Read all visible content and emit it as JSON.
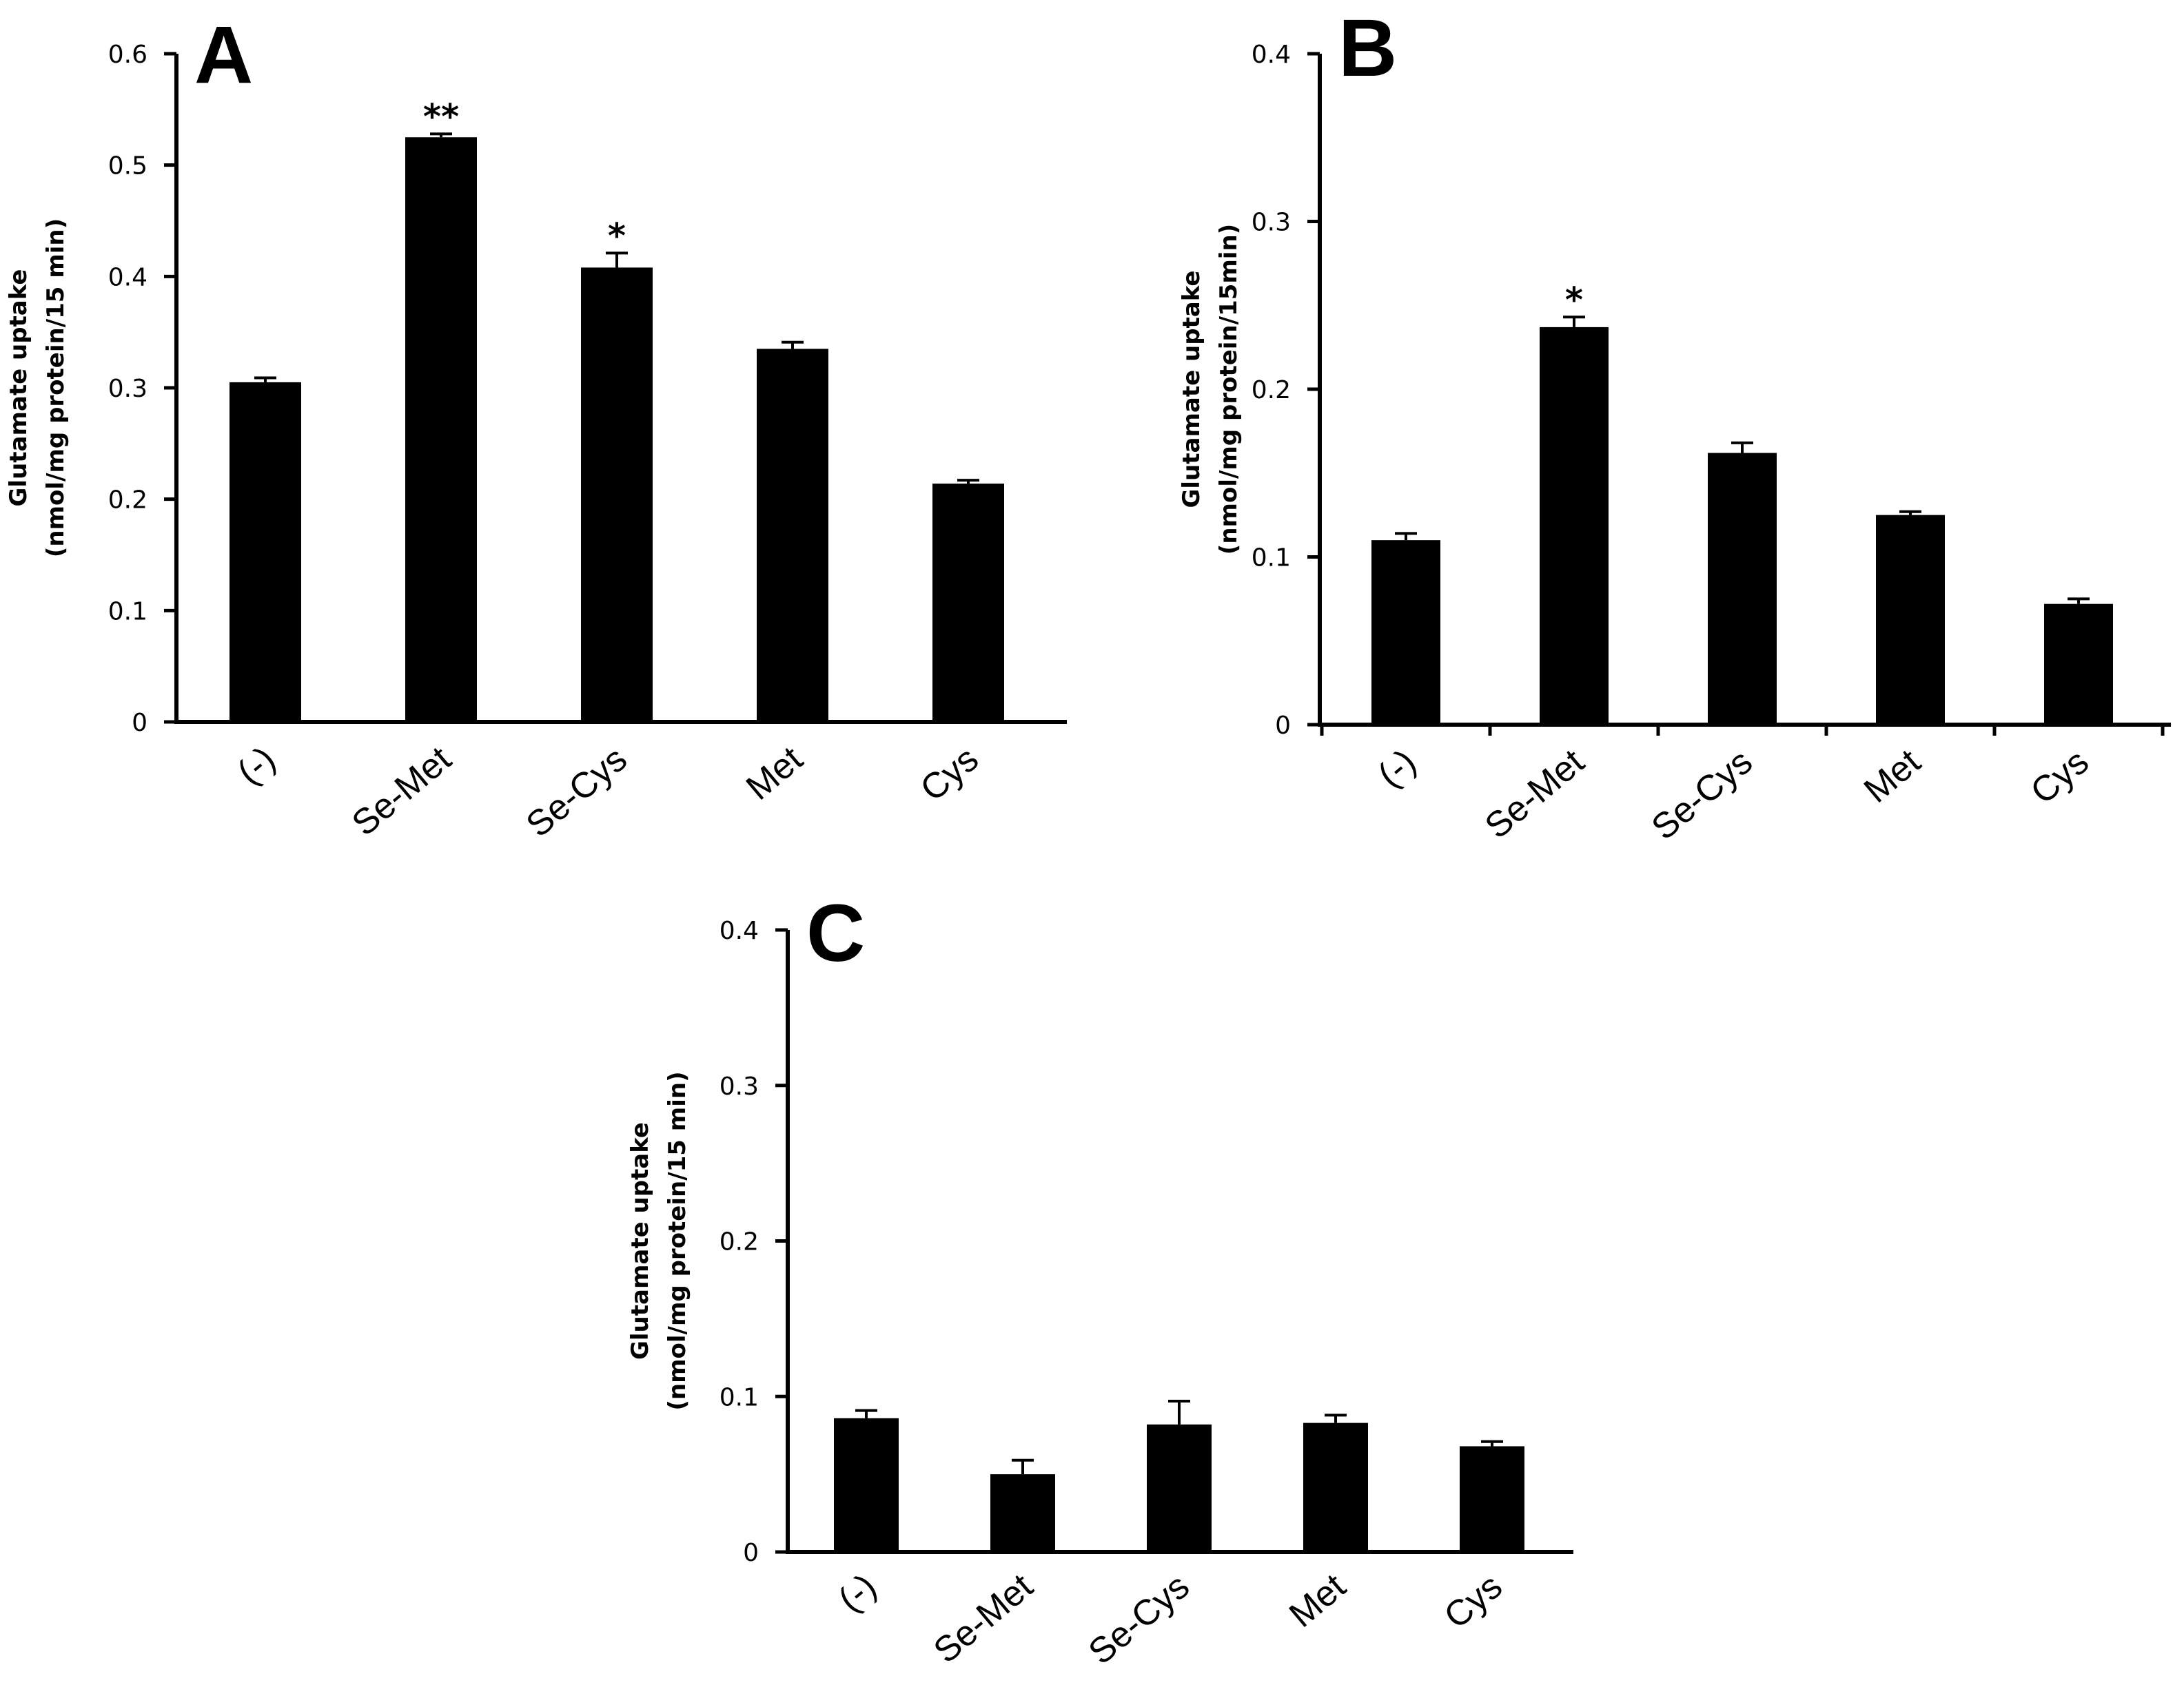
{
  "chart_data": [
    {
      "type": "bar",
      "panel": "A",
      "title": "",
      "ylabel_line1": "Glutamate uptake",
      "ylabel_line2": "(nmol/mg protein/15 min)",
      "xlabel": "",
      "ylim": [
        0,
        0.6
      ],
      "yticks": [
        0,
        0.1,
        0.2,
        0.3,
        0.4,
        0.5,
        0.6
      ],
      "ytick_labels": [
        "0",
        "0.1",
        "0.2",
        "0.3",
        "0.4",
        "0.5",
        "0.6"
      ],
      "categories": [
        "(-)",
        "Se-Met",
        "Se-Cys",
        "Met",
        "Cys"
      ],
      "values": [
        0.305,
        0.525,
        0.408,
        0.335,
        0.214
      ],
      "errors": [
        0.004,
        0.003,
        0.013,
        0.006,
        0.003
      ],
      "significance": [
        "",
        "**",
        "*",
        "",
        ""
      ],
      "x_tick_marks": false
    },
    {
      "type": "bar",
      "panel": "B",
      "title": "",
      "ylabel_line1": "Glutamate uptake",
      "ylabel_line2": "(nmol/mg protein/15min)",
      "xlabel": "",
      "ylim": [
        0,
        0.4
      ],
      "yticks": [
        0,
        0.1,
        0.2,
        0.3,
        0.4
      ],
      "ytick_labels": [
        "0",
        "0.1",
        "0.2",
        "0.3",
        "0.4"
      ],
      "categories": [
        "(-)",
        "Se-Met",
        "Se-Cys",
        "Met",
        "Cys"
      ],
      "values": [
        0.11,
        0.237,
        0.162,
        0.125,
        0.072
      ],
      "errors": [
        0.004,
        0.006,
        0.006,
        0.002,
        0.003
      ],
      "significance": [
        "",
        "*",
        "",
        "",
        ""
      ],
      "x_tick_marks": true
    },
    {
      "type": "bar",
      "panel": "C",
      "title": "",
      "ylabel_line1": "Glutamate uptake",
      "ylabel_line2": "(nmol/mg protein/15 min)",
      "xlabel": "",
      "ylim": [
        0,
        0.4
      ],
      "yticks": [
        0,
        0.1,
        0.2,
        0.3,
        0.4
      ],
      "ytick_labels": [
        "0",
        "0.1",
        "0.2",
        "0.3",
        "0.4"
      ],
      "categories": [
        "(-)",
        "Se-Met",
        "Se-Cys",
        "Met",
        "Cys"
      ],
      "values": [
        0.086,
        0.05,
        0.082,
        0.083,
        0.068
      ],
      "errors": [
        0.005,
        0.009,
        0.015,
        0.005,
        0.003
      ],
      "significance": [
        "",
        "",
        "",
        "",
        ""
      ],
      "x_tick_marks": false
    }
  ]
}
